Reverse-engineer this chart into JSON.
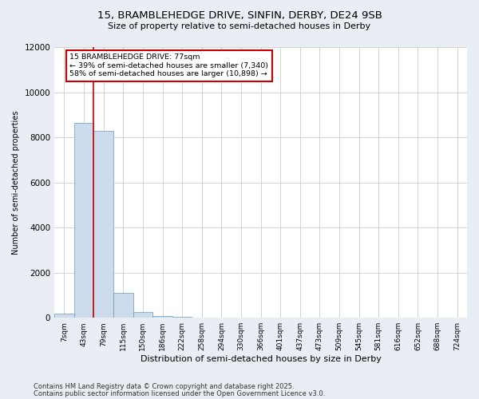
{
  "title_line1": "15, BRAMBLEHEDGE DRIVE, SINFIN, DERBY, DE24 9SB",
  "title_line2": "Size of property relative to semi-detached houses in Derby",
  "xlabel": "Distribution of semi-detached houses by size in Derby",
  "ylabel": "Number of semi-detached properties",
  "bar_labels": [
    "7sqm",
    "43sqm",
    "79sqm",
    "115sqm",
    "150sqm",
    "186sqm",
    "222sqm",
    "258sqm",
    "294sqm",
    "330sqm",
    "366sqm",
    "401sqm",
    "437sqm",
    "473sqm",
    "509sqm",
    "545sqm",
    "581sqm",
    "616sqm",
    "652sqm",
    "688sqm",
    "724sqm"
  ],
  "bar_values": [
    200,
    8650,
    8300,
    1100,
    250,
    80,
    30,
    0,
    0,
    0,
    0,
    0,
    0,
    0,
    0,
    0,
    0,
    0,
    0,
    0,
    0
  ],
  "bar_color": "#ccdcec",
  "bar_edge_color": "#6699bb",
  "vline_color": "#cc0000",
  "ylim": [
    0,
    12000
  ],
  "yticks": [
    0,
    2000,
    4000,
    6000,
    8000,
    10000,
    12000
  ],
  "annotation_text": "15 BRAMBLEHEDGE DRIVE: 77sqm\n← 39% of semi-detached houses are smaller (7,340)\n58% of semi-detached houses are larger (10,898) →",
  "annotation_box_color": "#ffffff",
  "annotation_box_edge": "#cc0000",
  "footer_line1": "Contains HM Land Registry data © Crown copyright and database right 2025.",
  "footer_line2": "Contains public sector information licensed under the Open Government Licence v3.0.",
  "bg_color": "#e8eef4",
  "plot_bg_color": "#ffffff",
  "grid_color": "#cccccc"
}
